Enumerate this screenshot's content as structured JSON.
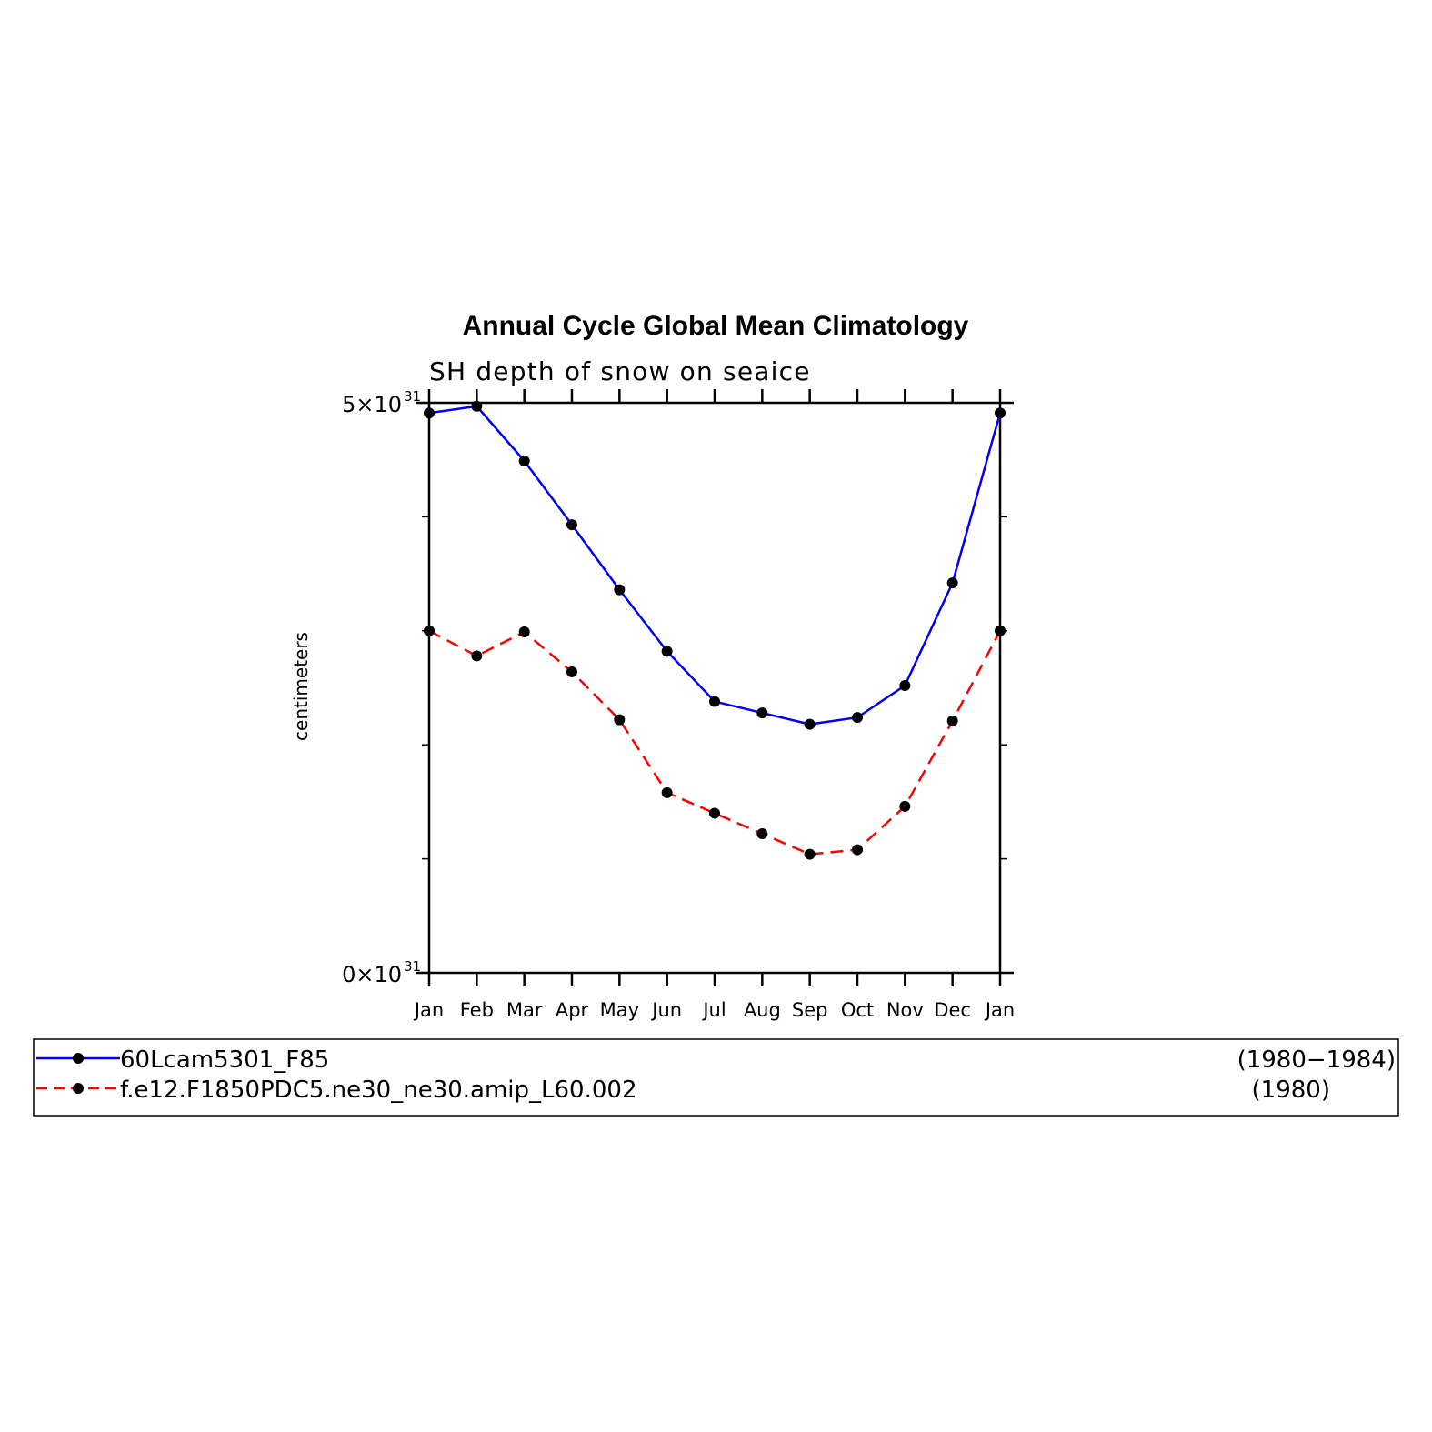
{
  "chart_data": {
    "type": "line",
    "title": "Annual Cycle Global Mean Climatology",
    "subtitle": "SH depth of snow on seaice",
    "ylabel": "centimeters",
    "xlabel": "",
    "categories": [
      "Jan",
      "Feb",
      "Mar",
      "Apr",
      "May",
      "Jun",
      "Jul",
      "Aug",
      "Sep",
      "Oct",
      "Nov",
      "Dec",
      "Jan"
    ],
    "ylim": [
      0,
      5
    ],
    "y_exponent": "31",
    "y_ticks": [
      {
        "value": 0,
        "mantissa": "0×10",
        "exp": "31"
      },
      {
        "value": 5,
        "mantissa": "5×10",
        "exp": "31"
      }
    ],
    "y_minor_ticks": [
      1,
      2,
      3,
      4
    ],
    "series": [
      {
        "name": "60Lcam5301_F85",
        "years": "(1980−1984)",
        "color": "#0000ff",
        "dash": "solid",
        "values": [
          4.91,
          4.97,
          4.49,
          3.93,
          3.36,
          2.82,
          2.38,
          2.28,
          2.18,
          2.24,
          2.52,
          3.42,
          4.91
        ]
      },
      {
        "name": "f.e12.F1850PDC5.ne30_ne30.amip_L60.002",
        "years": "(1980)",
        "color": "#ff0000",
        "dash": "dashed",
        "values": [
          3.0,
          2.78,
          2.99,
          2.64,
          2.22,
          1.58,
          1.4,
          1.22,
          1.04,
          1.08,
          1.46,
          2.21,
          3.0
        ]
      }
    ],
    "legend_position": "bottom",
    "grid": false
  }
}
